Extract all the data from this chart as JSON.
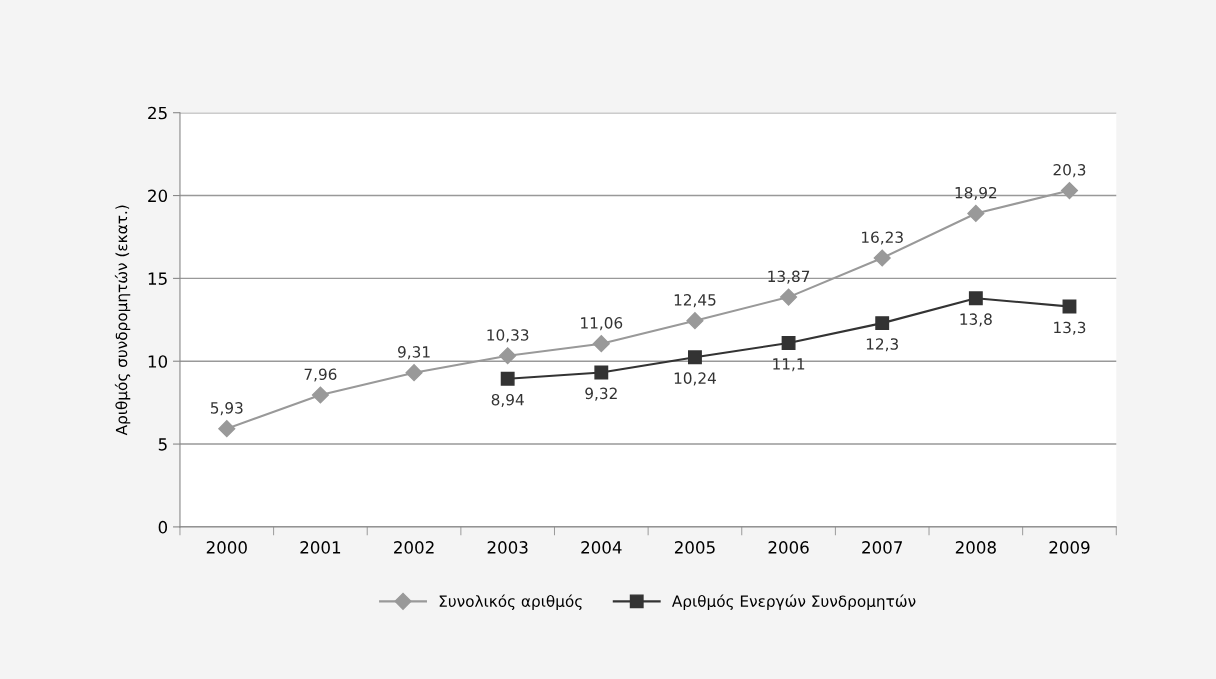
{
  "chart_data": {
    "type": "line",
    "ylabel": "Αριθμός συνδρομητών (εκατ.)",
    "categories": [
      "2000",
      "2001",
      "2002",
      "2003",
      "2004",
      "2005",
      "2006",
      "2007",
      "2008",
      "2009"
    ],
    "series": [
      {
        "name": "Συνολικός αριθμός",
        "color": "#999999",
        "marker": "diamond",
        "values": [
          5.93,
          7.96,
          9.31,
          10.33,
          11.06,
          12.45,
          13.87,
          16.23,
          18.92,
          20.3
        ],
        "value_labels": [
          "5,93",
          "7,96",
          "9,31",
          "10,33",
          "11,06",
          "12,45",
          "13,87",
          "16,23",
          "18,92",
          "20,3"
        ]
      },
      {
        "name": "Αριθμός Ενεργών Συνδρομητών",
        "color": "#333333",
        "marker": "square",
        "values": [
          null,
          null,
          null,
          8.94,
          9.32,
          10.24,
          11.1,
          12.3,
          13.8,
          13.3
        ],
        "value_labels": [
          null,
          null,
          null,
          "8,94",
          "9,32",
          "10,24",
          "11,1",
          "12,3",
          "13,8",
          "13,3"
        ]
      }
    ],
    "ylim": [
      0,
      25
    ],
    "yticks": [
      0,
      5,
      10,
      15,
      20,
      25
    ],
    "grid": "y",
    "legend": "bottom",
    "line_style": "solid"
  }
}
